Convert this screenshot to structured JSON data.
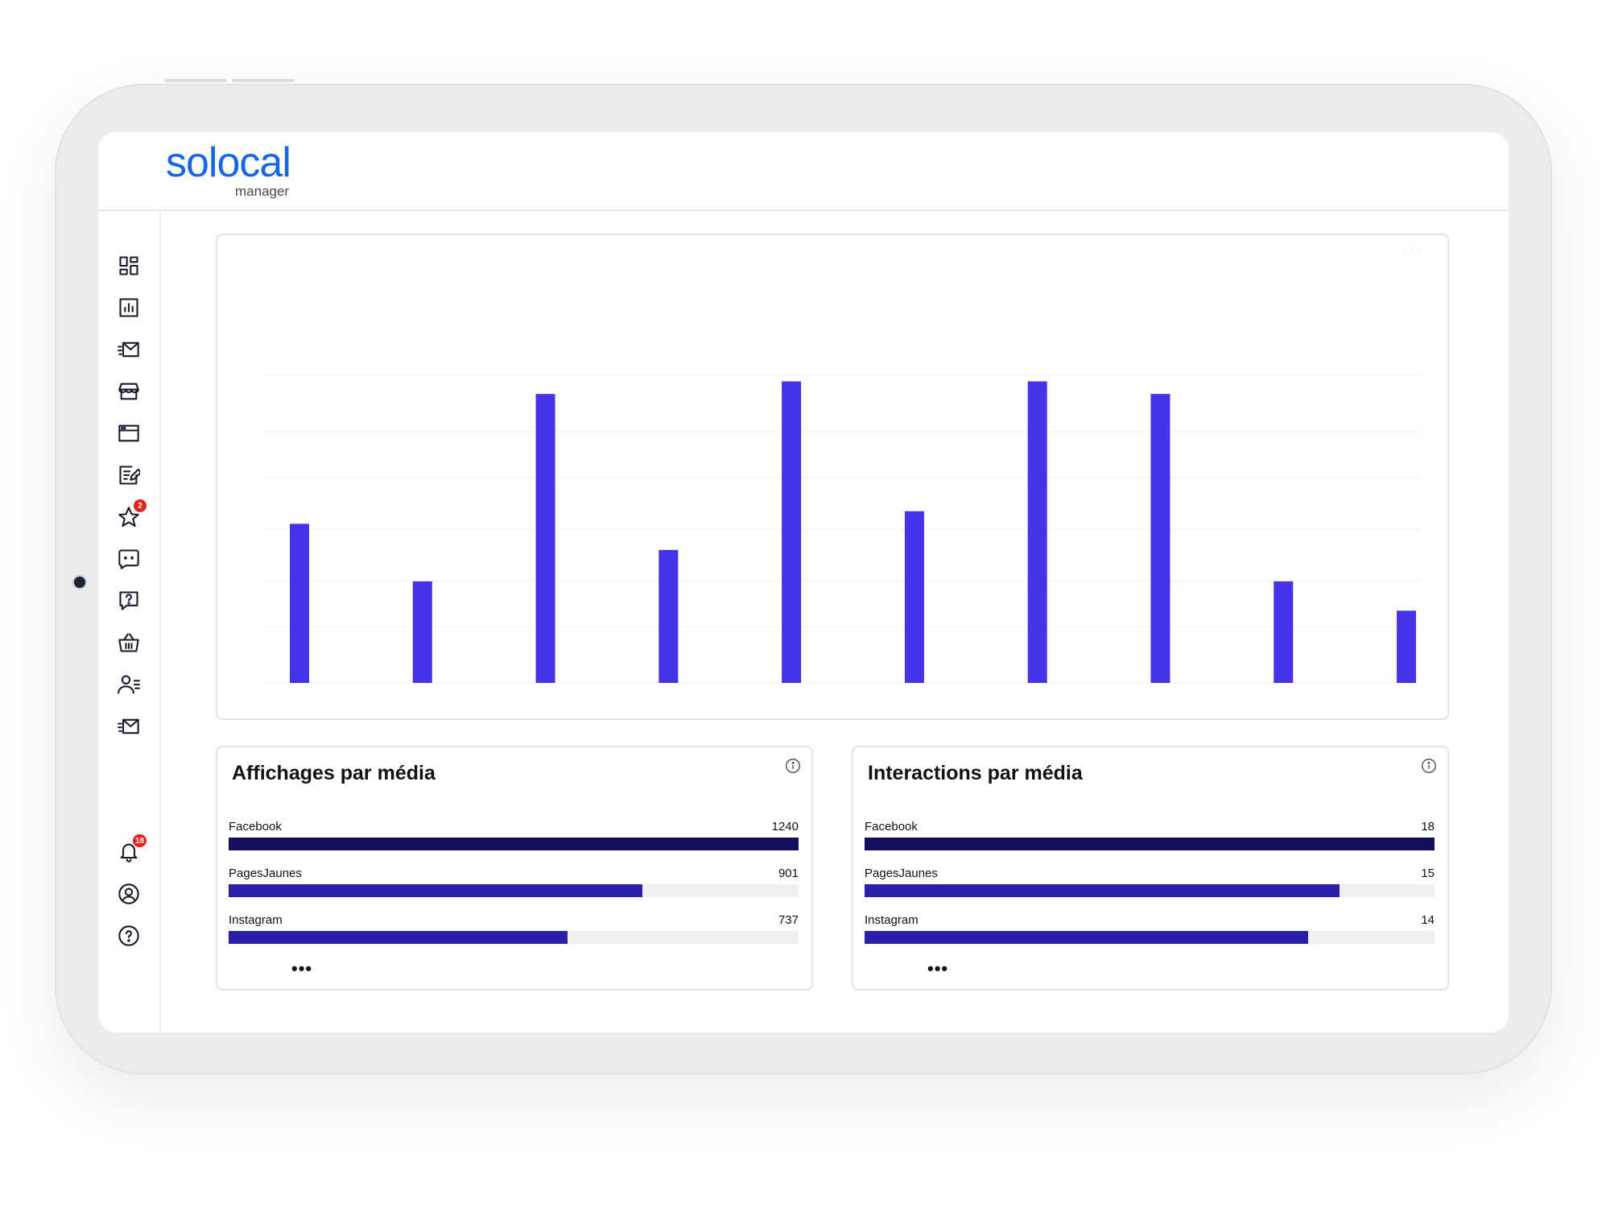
{
  "app": {
    "logo_main": "solocal",
    "logo_sub": "manager"
  },
  "colors": {
    "brand": "#1567e8",
    "chart_bar": "#4632e8",
    "bar_primary": "#140f5a",
    "bar_secondary": "#2a1fa8",
    "badge": "#e2231a"
  },
  "sidebar": {
    "items": [
      {
        "icon": "dashboard-icon"
      },
      {
        "icon": "statistics-icon"
      },
      {
        "icon": "messages-icon"
      },
      {
        "icon": "store-icon"
      },
      {
        "icon": "website-icon"
      },
      {
        "icon": "edit-content-icon"
      },
      {
        "icon": "reviews-star-icon",
        "badge": "2"
      },
      {
        "icon": "chat-icon"
      },
      {
        "icon": "questions-icon"
      },
      {
        "icon": "shop-basket-icon"
      },
      {
        "icon": "contacts-icon"
      },
      {
        "icon": "campaign-mail-icon"
      }
    ],
    "bottom_items": [
      {
        "icon": "notifications-bell-icon",
        "badge": "18"
      },
      {
        "icon": "account-user-icon"
      },
      {
        "icon": "help-icon"
      }
    ]
  },
  "chart_data": {
    "type": "bar",
    "title": "",
    "xlabel": "",
    "ylabel": "",
    "grid": true,
    "categories": [
      "",
      "",
      "",
      "",
      "",
      "",
      "",
      "",
      "",
      ""
    ],
    "values": [
      152,
      97,
      276,
      127,
      288,
      164,
      288,
      276,
      97,
      69
    ],
    "ylim": [
      0,
      300
    ]
  },
  "media_cards": [
    {
      "title": "Affichages par média",
      "rows": [
        {
          "label": "Facebook",
          "value": "1240",
          "ratio": 1.0,
          "color": "#140f5a"
        },
        {
          "label": "PagesJaunes",
          "value": "901",
          "ratio": 0.7266,
          "color": "#2a1fa8"
        },
        {
          "label": "Instagram",
          "value": "737",
          "ratio": 0.5944,
          "color": "#2a1fa8"
        }
      ],
      "more": "•••"
    },
    {
      "title": "Interactions par média",
      "rows": [
        {
          "label": "Facebook",
          "value": "18",
          "ratio": 1.0,
          "color": "#140f5a"
        },
        {
          "label": "PagesJaunes",
          "value": "15",
          "ratio": 0.8333,
          "color": "#2a1fa8"
        },
        {
          "label": "Instagram",
          "value": "14",
          "ratio": 0.7778,
          "color": "#2a1fa8"
        }
      ],
      "more": "•••"
    }
  ]
}
